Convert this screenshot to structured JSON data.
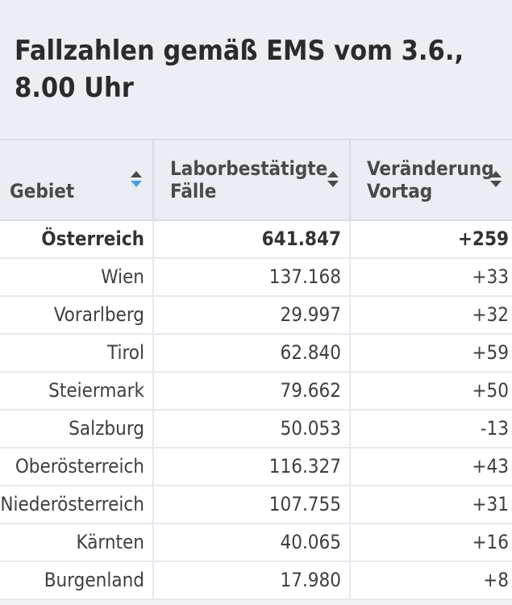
{
  "title": "Fallzahlen gemäß EMS vom 3.6., 8.00 Uhr",
  "colors": {
    "sort_active": "#4a9fe0",
    "sort_inactive": "#4a4a4a"
  },
  "columns": [
    {
      "label": "Gebiet",
      "sort_icon": "sort-arrows-icon",
      "active_sort": "descending"
    },
    {
      "label": "Laborbestätigte Fälle",
      "sort_icon": "sort-arrows-icon"
    },
    {
      "label": "Veränderung Vortag",
      "sort_icon": "sort-arrows-icon"
    }
  ],
  "rows": [
    {
      "region": "Österreich",
      "cases": "641.847",
      "change": "+259",
      "bold": true
    },
    {
      "region": "Wien",
      "cases": "137.168",
      "change": "+33"
    },
    {
      "region": "Vorarlberg",
      "cases": "29.997",
      "change": "+32"
    },
    {
      "region": "Tirol",
      "cases": "62.840",
      "change": "+59"
    },
    {
      "region": "Steiermark",
      "cases": "79.662",
      "change": "+50"
    },
    {
      "region": "Salzburg",
      "cases": "50.053",
      "change": "-13"
    },
    {
      "region": "Oberösterreich",
      "cases": "116.327",
      "change": "+43"
    },
    {
      "region": "Niederösterreich",
      "cases": "107.755",
      "change": "+31"
    },
    {
      "region": "Kärnten",
      "cases": "40.065",
      "change": "+16"
    },
    {
      "region": "Burgenland",
      "cases": "17.980",
      "change": "+8"
    }
  ]
}
